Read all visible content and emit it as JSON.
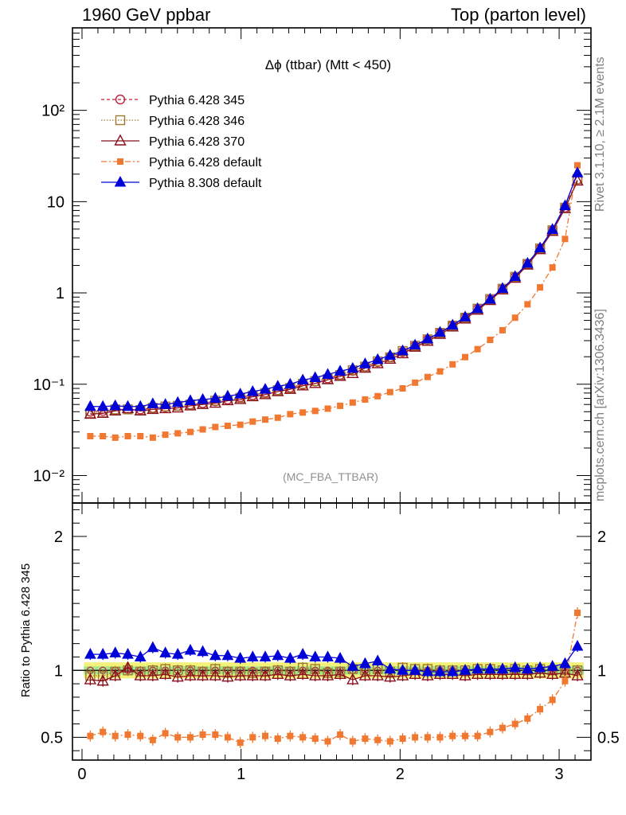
{
  "header": {
    "left": "1960 GeV ppbar",
    "right": "Top (parton level)"
  },
  "side": {
    "rivet": "Rivet 3.1.10, ≥ 2.1M events",
    "mcplots": "mcplots.cern.ch [arXiv:1306.3436]"
  },
  "colors": {
    "p345": "#c0203a",
    "p346": "#a07830",
    "p370": "#8b0f1e",
    "p6def": "#f07830",
    "p8def": "#0000d8",
    "band_yellow": "#f2f27a",
    "band_green": "#a6e68a"
  },
  "chart_data": [
    {
      "type": "line",
      "title": "Δϕ (ttbar) (Mtt < 450)",
      "watermark": "(MC_FBA_TTBAR)",
      "yscale": "log",
      "xlim": [
        -0.06,
        3.2
      ],
      "ylim": [
        0.005,
        800
      ],
      "y_ticks": [
        {
          "value": 0.01,
          "label": "10⁻²"
        },
        {
          "value": 0.1,
          "label": "10⁻¹"
        },
        {
          "value": 1,
          "label": "1"
        },
        {
          "value": 10,
          "label": "10"
        },
        {
          "value": 100,
          "label": "10²"
        }
      ],
      "legend_position": "top-left",
      "x": [
        0.052,
        0.131,
        0.209,
        0.288,
        0.367,
        0.445,
        0.524,
        0.602,
        0.681,
        0.759,
        0.838,
        0.916,
        0.995,
        1.073,
        1.152,
        1.231,
        1.309,
        1.388,
        1.466,
        1.545,
        1.623,
        1.702,
        1.78,
        1.859,
        1.937,
        2.016,
        2.094,
        2.173,
        2.251,
        2.33,
        2.409,
        2.487,
        2.566,
        2.644,
        2.723,
        2.801,
        2.88,
        2.958,
        3.037,
        3.115
      ],
      "series": [
        {
          "name": "Pythia 6.428 345",
          "key": "p345",
          "marker": "circle-open",
          "dash": "4,3",
          "values": [
            0.05,
            0.051,
            0.052,
            0.053,
            0.053,
            0.055,
            0.056,
            0.058,
            0.06,
            0.062,
            0.065,
            0.068,
            0.072,
            0.076,
            0.081,
            0.086,
            0.092,
            0.099,
            0.107,
            0.116,
            0.127,
            0.14,
            0.156,
            0.175,
            0.198,
            0.226,
            0.262,
            0.307,
            0.364,
            0.438,
            0.537,
            0.667,
            0.85,
            1.11,
            1.49,
            2.08,
            3.05,
            4.84,
            8.6,
            17.5
          ]
        },
        {
          "name": "Pythia 6.428 346",
          "key": "p346",
          "marker": "square-open",
          "dash": "1.5,2",
          "values": [
            0.048,
            0.049,
            0.053,
            0.053,
            0.052,
            0.055,
            0.057,
            0.058,
            0.06,
            0.061,
            0.066,
            0.067,
            0.071,
            0.075,
            0.08,
            0.086,
            0.091,
            0.101,
            0.108,
            0.114,
            0.126,
            0.142,
            0.156,
            0.178,
            0.197,
            0.231,
            0.264,
            0.31,
            0.365,
            0.438,
            0.535,
            0.672,
            0.856,
            1.11,
            1.5,
            2.08,
            3.07,
            4.86,
            8.58,
            17.6
          ]
        },
        {
          "name": "Pythia 6.428 370",
          "key": "p370",
          "marker": "triangle-open",
          "dash": "",
          "values": [
            0.047,
            0.048,
            0.051,
            0.054,
            0.051,
            0.053,
            0.054,
            0.055,
            0.058,
            0.06,
            0.062,
            0.066,
            0.068,
            0.073,
            0.077,
            0.083,
            0.088,
            0.096,
            0.102,
            0.112,
            0.122,
            0.131,
            0.15,
            0.168,
            0.188,
            0.216,
            0.255,
            0.295,
            0.352,
            0.424,
            0.518,
            0.648,
            0.826,
            1.08,
            1.45,
            2.02,
            2.98,
            4.72,
            8.4,
            16.8
          ]
        },
        {
          "name": "Pythia 6.428 default",
          "key": "p6def",
          "marker": "square-filled",
          "dash": "7,3,2,3",
          "values": [
            0.027,
            0.027,
            0.026,
            0.027,
            0.027,
            0.026,
            0.028,
            0.029,
            0.03,
            0.032,
            0.034,
            0.035,
            0.036,
            0.039,
            0.041,
            0.043,
            0.047,
            0.049,
            0.051,
            0.054,
            0.058,
            0.063,
            0.068,
            0.074,
            0.082,
            0.09,
            0.104,
            0.12,
            0.138,
            0.165,
            0.198,
            0.242,
            0.306,
            0.39,
            0.535,
            0.75,
            1.15,
            1.9,
            3.9,
            25.0
          ]
        },
        {
          "name": "Pythia 8.308 default",
          "key": "p8def",
          "marker": "triangle-filled",
          "dash": "",
          "values": [
            0.057,
            0.057,
            0.058,
            0.057,
            0.057,
            0.061,
            0.06,
            0.063,
            0.066,
            0.068,
            0.07,
            0.074,
            0.078,
            0.083,
            0.088,
            0.095,
            0.1,
            0.111,
            0.118,
            0.128,
            0.139,
            0.149,
            0.167,
            0.186,
            0.207,
            0.232,
            0.268,
            0.313,
            0.37,
            0.443,
            0.545,
            0.672,
            0.853,
            1.12,
            1.51,
            2.11,
            3.11,
            4.95,
            9.0,
            20.6
          ]
        }
      ]
    },
    {
      "type": "line",
      "ylabel": "Ratio to Pythia 6.428 345",
      "xlim": [
        -0.06,
        3.2
      ],
      "ylim": [
        0.33,
        2.25
      ],
      "x_ticks": [
        {
          "value": 0,
          "label": "0"
        },
        {
          "value": 1,
          "label": "1"
        },
        {
          "value": 2,
          "label": "2"
        },
        {
          "value": 3,
          "label": "3"
        }
      ],
      "y_ticks": [
        {
          "value": 0.5,
          "label": "0.5"
        },
        {
          "value": 1,
          "label": "1"
        },
        {
          "value": 2,
          "label": "2"
        }
      ],
      "band": {
        "yellow_half_width": 0.06,
        "green_half_width": 0.03
      },
      "series": [
        {
          "name": "Pythia 6.428 346",
          "key": "p346",
          "marker": "square-open",
          "dash": "1.5,2",
          "values": [
            0.96,
            0.96,
            0.99,
            1.0,
            0.99,
            1.0,
            1.01,
            1.0,
            1.0,
            0.99,
            1.01,
            0.99,
            0.99,
            0.98,
            0.99,
            1.0,
            0.99,
            1.02,
            1.01,
            0.98,
            0.99,
            1.01,
            1.0,
            1.01,
            0.99,
            1.02,
            1.01,
            1.01,
            1.0,
            1.0,
            1.0,
            1.01,
            1.01,
            1.0,
            1.01,
            1.0,
            1.01,
            1.0,
            1.0,
            1.0
          ]
        },
        {
          "name": "Pythia 6.428 370",
          "key": "p370",
          "marker": "triangle-open",
          "dash": "",
          "values": [
            0.93,
            0.92,
            0.96,
            1.02,
            0.96,
            0.96,
            0.97,
            0.95,
            0.96,
            0.96,
            0.96,
            0.95,
            0.96,
            0.96,
            0.96,
            0.97,
            0.96,
            0.97,
            0.96,
            0.96,
            0.97,
            0.93,
            0.96,
            0.96,
            0.95,
            0.96,
            0.97,
            0.96,
            0.97,
            0.97,
            0.96,
            0.97,
            0.97,
            0.97,
            0.97,
            0.97,
            0.98,
            0.97,
            0.98,
            0.96
          ]
        },
        {
          "name": "Pythia 6.428 default",
          "key": "p6def",
          "marker": "square-filled",
          "dash": "7,3,2,3",
          "values": [
            0.51,
            0.54,
            0.51,
            0.52,
            0.51,
            0.48,
            0.53,
            0.5,
            0.5,
            0.52,
            0.52,
            0.5,
            0.46,
            0.5,
            0.51,
            0.49,
            0.51,
            0.5,
            0.49,
            0.47,
            0.52,
            0.47,
            0.49,
            0.48,
            0.47,
            0.49,
            0.5,
            0.5,
            0.5,
            0.51,
            0.51,
            0.51,
            0.54,
            0.57,
            0.6,
            0.64,
            0.71,
            0.78,
            0.92,
            1.43
          ]
        },
        {
          "name": "Pythia 8.308 default",
          "key": "p8def",
          "marker": "triangle-filled",
          "dash": "",
          "values": [
            1.12,
            1.12,
            1.13,
            1.12,
            1.1,
            1.17,
            1.13,
            1.12,
            1.15,
            1.14,
            1.11,
            1.11,
            1.09,
            1.1,
            1.1,
            1.11,
            1.09,
            1.12,
            1.1,
            1.1,
            1.09,
            1.03,
            1.05,
            1.07,
            1.01,
            1.0,
            1.0,
            0.99,
            0.99,
            0.99,
            1.0,
            1.01,
            1.01,
            1.01,
            1.02,
            1.01,
            1.02,
            1.03,
            1.05,
            1.18
          ]
        }
      ]
    }
  ]
}
